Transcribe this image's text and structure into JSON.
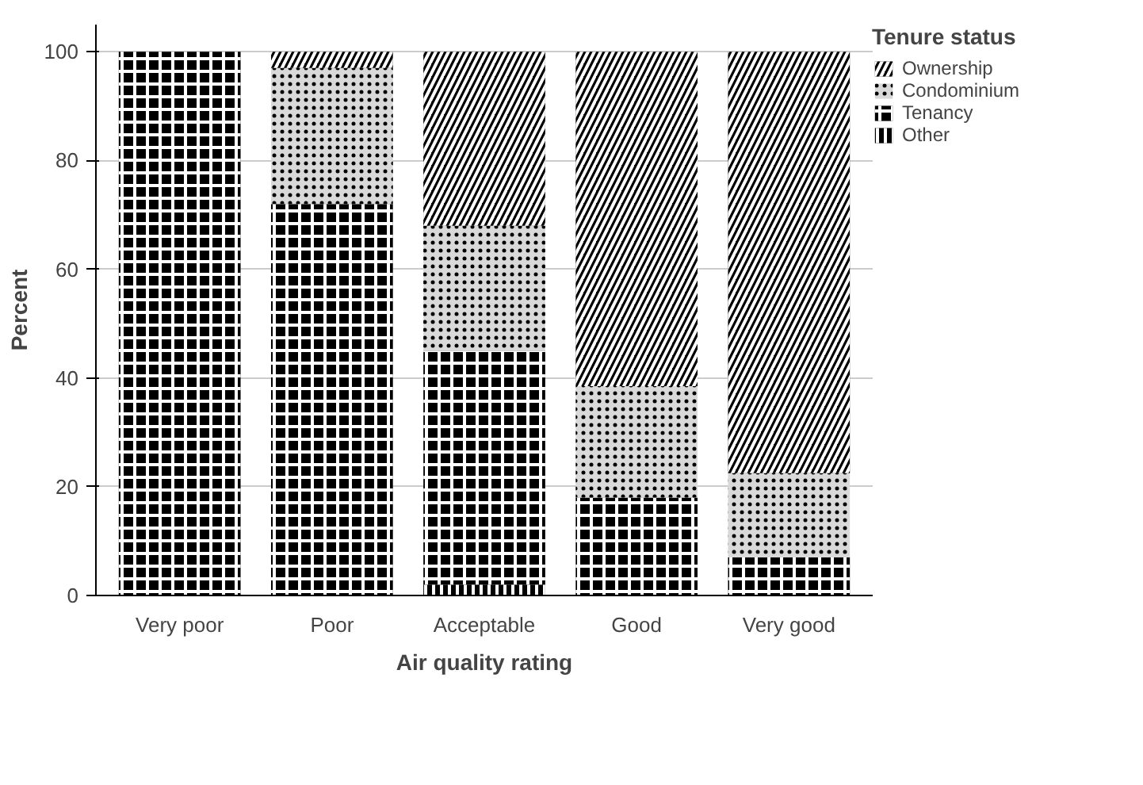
{
  "chart_data": {
    "type": "bar",
    "stacked": true,
    "xlabel": "Air quality rating",
    "ylabel": "Percent",
    "legend_title": "Tenure status",
    "legend": "right",
    "grid": "y",
    "categories": [
      "Very poor",
      "Poor",
      "Acceptable",
      "Good",
      "Very good"
    ],
    "ylim": [
      0,
      105
    ],
    "yticks": [
      0,
      20,
      40,
      60,
      80,
      100
    ],
    "series": [
      {
        "name": "Other",
        "color": "#000000",
        "values": [
          0,
          0,
          2,
          0,
          0
        ]
      },
      {
        "name": "Tenancy",
        "color": "#000000",
        "values": [
          100,
          72,
          43,
          18,
          7
        ]
      },
      {
        "name": "Condominium",
        "color": "#d9d9d9",
        "values": [
          0,
          25,
          23,
          20.5,
          15.5
        ]
      },
      {
        "name": "Ownership",
        "color": "#000000",
        "values": [
          0,
          3,
          32,
          61.5,
          77.5
        ]
      }
    ]
  }
}
